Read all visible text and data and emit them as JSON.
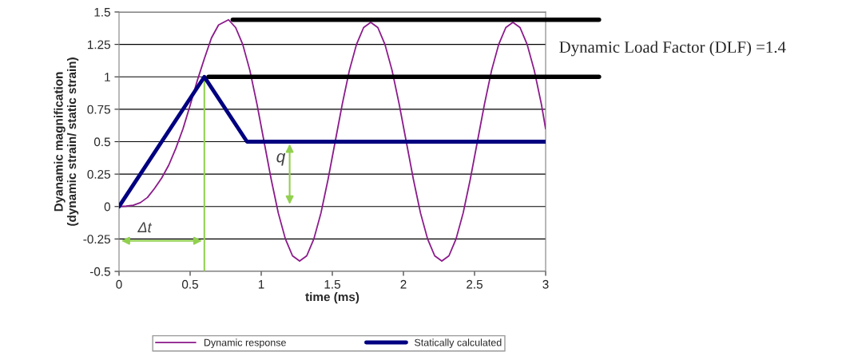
{
  "chart_data": {
    "type": "line",
    "xlabel": "time (ms)",
    "ylabel": "Dyanamic magnification\n(dynamic strain/ static strain)",
    "series": [
      {
        "name": "Dynamic response",
        "color": "#8b1a8b",
        "x": [
          0,
          0.05,
          0.1,
          0.15,
          0.2,
          0.25,
          0.3,
          0.35,
          0.4,
          0.45,
          0.5,
          0.55,
          0.6,
          0.65,
          0.7,
          0.77,
          0.82,
          0.87,
          0.92,
          0.97,
          1.02,
          1.07,
          1.12,
          1.17,
          1.22,
          1.27,
          1.32,
          1.37,
          1.42,
          1.47,
          1.52,
          1.57,
          1.62,
          1.67,
          1.72,
          1.77,
          1.82,
          1.87,
          1.92,
          1.97,
          2.02,
          2.07,
          2.12,
          2.17,
          2.22,
          2.27,
          2.32,
          2.37,
          2.42,
          2.47,
          2.52,
          2.57,
          2.62,
          2.67,
          2.72,
          2.77,
          2.82,
          2.87,
          2.92,
          2.97,
          3
        ],
        "values": [
          0,
          0.003,
          0.01,
          0.03,
          0.07,
          0.14,
          0.22,
          0.32,
          0.45,
          0.6,
          0.78,
          0.97,
          1.14,
          1.3,
          1.4,
          1.44,
          1.38,
          1.25,
          1.05,
          0.79,
          0.5,
          0.21,
          -0.05,
          -0.25,
          -0.38,
          -0.42,
          -0.38,
          -0.25,
          -0.05,
          0.21,
          0.5,
          0.79,
          1.05,
          1.25,
          1.38,
          1.42,
          1.38,
          1.25,
          1.05,
          0.79,
          0.5,
          0.21,
          -0.05,
          -0.25,
          -0.38,
          -0.42,
          -0.38,
          -0.25,
          -0.05,
          0.21,
          0.5,
          0.79,
          1.05,
          1.25,
          1.38,
          1.42,
          1.38,
          1.25,
          1.05,
          0.79,
          0.6
        ]
      },
      {
        "name": "Statically calculated",
        "color": "#000080",
        "x": [
          0,
          0.6,
          0.9,
          3
        ],
        "values": [
          0,
          1,
          0.5,
          0.5
        ]
      }
    ],
    "xlim": [
      0,
      3
    ],
    "xticks": [
      0,
      0.5,
      1,
      1.5,
      2,
      2.5,
      3
    ],
    "ylim": [
      -0.5,
      1.5
    ],
    "yticks": [
      -0.5,
      -0.25,
      0,
      0.25,
      0.5,
      0.75,
      1,
      1.25,
      1.5
    ],
    "grid": "y",
    "legend": "bottom",
    "ref_lines": [
      {
        "axis": "y",
        "value": 1.44,
        "label": "Dynamic Load Factor (DLF) =1.4",
        "color": "#000000"
      },
      {
        "axis": "y",
        "value": 1.0,
        "color": "#000000"
      },
      {
        "axis": "x",
        "value": 0.6,
        "color": "#92d050"
      }
    ],
    "annotations": [
      "Δt",
      "q"
    ]
  }
}
